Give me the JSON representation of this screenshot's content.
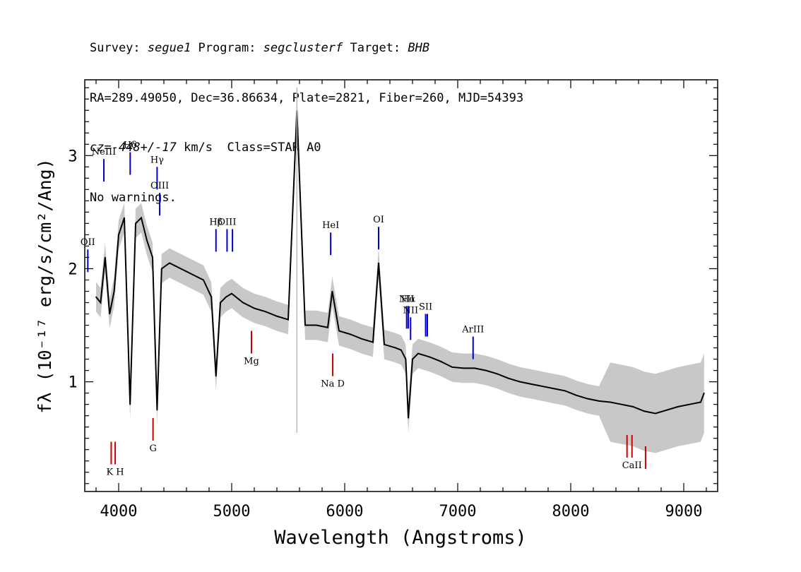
{
  "header": {
    "line1": {
      "survey_label": "Survey: ",
      "survey": "segue1",
      "program_label": " Program: ",
      "program": "segclusterf",
      "target_label": " Target: ",
      "target": "BHB"
    },
    "line2": "RA=289.49050, Dec=36.86634, Plate=2821, Fiber=260, MJD=54393",
    "line3": {
      "cz_label": "cz=",
      "cz_value": "-448+/-17",
      "cz_unit": " km/s  Class=STAR A0"
    },
    "line4": "No warnings."
  },
  "chart_data": {
    "type": "line",
    "xlabel": "Wavelength (Angstroms)",
    "ylabel": "fλ (10⁻¹⁷ erg/s/cm²/Ang)",
    "xlim": [
      3700,
      9300
    ],
    "ylim": [
      0.03,
      3.67
    ],
    "x_ticks": [
      4000,
      5000,
      6000,
      7000,
      8000,
      9000
    ],
    "y_ticks": [
      1,
      2,
      3
    ],
    "series": [
      {
        "color": "#000000",
        "x": [
          3800,
          3840,
          3880,
          3920,
          3960,
          4000,
          4050,
          4101,
          4150,
          4200,
          4250,
          4300,
          4340,
          4380,
          4450,
          4550,
          4650,
          4750,
          4820,
          4861,
          4900,
          4950,
          5000,
          5100,
          5200,
          5300,
          5400,
          5500,
          5577,
          5650,
          5750,
          5850,
          5890,
          5950,
          6050,
          6150,
          6250,
          6300,
          6350,
          6450,
          6500,
          6540,
          6563,
          6600,
          6650,
          6750,
          6850,
          6950,
          7050,
          7150,
          7250,
          7350,
          7450,
          7550,
          7650,
          7750,
          7850,
          7950,
          8050,
          8150,
          8250,
          8350,
          8450,
          8550,
          8650,
          8750,
          8850,
          8950,
          9050,
          9150,
          9180
        ],
        "y": [
          1.75,
          1.7,
          2.1,
          1.6,
          1.8,
          2.3,
          2.45,
          0.8,
          2.4,
          2.45,
          2.25,
          2.1,
          0.75,
          2.0,
          2.05,
          2.0,
          1.95,
          1.9,
          1.75,
          1.05,
          1.7,
          1.75,
          1.78,
          1.7,
          1.65,
          1.62,
          1.58,
          1.55,
          3.4,
          1.5,
          1.5,
          1.48,
          1.8,
          1.45,
          1.42,
          1.38,
          1.35,
          2.05,
          1.33,
          1.3,
          1.28,
          1.2,
          0.68,
          1.2,
          1.25,
          1.22,
          1.18,
          1.13,
          1.12,
          1.12,
          1.1,
          1.07,
          1.03,
          1.0,
          0.98,
          0.96,
          0.94,
          0.92,
          0.88,
          0.85,
          0.83,
          0.82,
          0.8,
          0.78,
          0.74,
          0.72,
          0.75,
          0.78,
          0.8,
          0.82,
          0.9
        ]
      },
      {
        "color": "#bbbbbb",
        "x": [
          5577,
          5577
        ],
        "y": [
          0.55,
          3.6
        ]
      }
    ],
    "emission_lines": [
      {
        "label": "OII",
        "x": 3727,
        "y0": 1.97,
        "y1": 2.17,
        "color": "#0000cc"
      },
      {
        "label": "NeIII",
        "x": 3869,
        "y0": 2.77,
        "y1": 2.97,
        "color": "#0000cc"
      },
      {
        "label": "Hδ",
        "x": 4102,
        "y0": 2.83,
        "y1": 3.03,
        "color": "#0000cc"
      },
      {
        "label": "Hγ",
        "x": 4340,
        "y0": 2.7,
        "y1": 2.9,
        "color": "#0000cc"
      },
      {
        "label": "OIII",
        "x": 4363,
        "y0": 2.47,
        "y1": 2.67,
        "color": "#0000cc"
      },
      {
        "label": "Hβ",
        "x": 4861,
        "y0": 2.15,
        "y1": 2.35,
        "color": "#0000cc"
      },
      {
        "label": "OIII",
        "x": 4959,
        "y0": 2.15,
        "y1": 2.35,
        "color": "#0000cc"
      },
      {
        "label": "",
        "x": 5007,
        "y0": 2.15,
        "y1": 2.35,
        "color": "#0000cc"
      },
      {
        "label": "HeI",
        "x": 5876,
        "y0": 2.12,
        "y1": 2.32,
        "color": "#0000cc"
      },
      {
        "label": "OI",
        "x": 6300,
        "y0": 2.17,
        "y1": 2.37,
        "color": "#0000cc"
      },
      {
        "label": "NII",
        "x": 6548,
        "y0": 1.47,
        "y1": 1.67,
        "color": "#0000cc"
      },
      {
        "label": "Hα",
        "x": 6563,
        "y0": 1.47,
        "y1": 1.67,
        "color": "#0000cc"
      },
      {
        "label": "NII",
        "x": 6583,
        "y0": 1.37,
        "y1": 1.57,
        "color": "#0000cc"
      },
      {
        "label": "SII",
        "x": 6716,
        "y0": 1.4,
        "y1": 1.6,
        "color": "#0000cc"
      },
      {
        "label": "",
        "x": 6731,
        "y0": 1.4,
        "y1": 1.6,
        "color": "#0000cc"
      },
      {
        "label": "ArIII",
        "x": 7136,
        "y0": 1.2,
        "y1": 1.4,
        "color": "#0000cc"
      }
    ],
    "absorption_lines": [
      {
        "label": "",
        "x": 3934,
        "y0": 0.27,
        "y1": 0.47,
        "color": "#cc0000"
      },
      {
        "label": "K H",
        "x": 3969,
        "y0": 0.27,
        "y1": 0.47,
        "color": "#cc0000"
      },
      {
        "label": "G",
        "x": 4304,
        "y0": 0.48,
        "y1": 0.68,
        "color": "#cc0000"
      },
      {
        "label": "Mg",
        "x": 5175,
        "y0": 1.25,
        "y1": 1.45,
        "color": "#cc0000"
      },
      {
        "label": "Na D",
        "x": 5894,
        "y0": 1.05,
        "y1": 1.25,
        "color": "#cc0000"
      },
      {
        "label": "",
        "x": 8498,
        "y0": 0.33,
        "y1": 0.53,
        "color": "#cc0000"
      },
      {
        "label": "CaII",
        "x": 8542,
        "y0": 0.33,
        "y1": 0.53,
        "color": "#cc0000"
      },
      {
        "label": "",
        "x": 8662,
        "y0": 0.23,
        "y1": 0.43,
        "color": "#cc0000"
      }
    ]
  }
}
